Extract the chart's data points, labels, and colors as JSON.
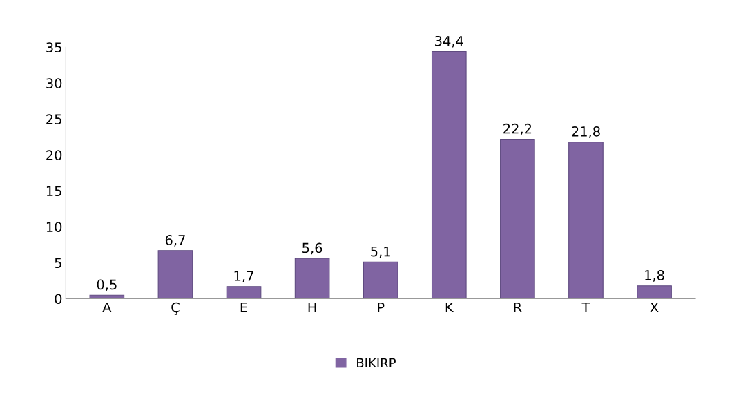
{
  "chart_data": {
    "type": "bar",
    "categories": [
      "A",
      "Ç",
      "E",
      "H",
      "P",
      "K",
      "R",
      "T",
      "X"
    ],
    "series": [
      {
        "name": "BIKIRP",
        "color": "#8064a2",
        "values": [
          0.5,
          6.7,
          1.7,
          5.6,
          5.1,
          34.4,
          22.2,
          21.8,
          1.8
        ],
        "value_labels": [
          "0,5",
          "6,7",
          "1,7",
          "5,6",
          "5,1",
          "34,4",
          "22,2",
          "21,8",
          "1,8"
        ]
      }
    ],
    "ylim": [
      0,
      35
    ],
    "yticks": [
      0,
      5,
      10,
      15,
      20,
      25,
      30,
      35
    ],
    "grid": false,
    "legend": "bottom"
  }
}
